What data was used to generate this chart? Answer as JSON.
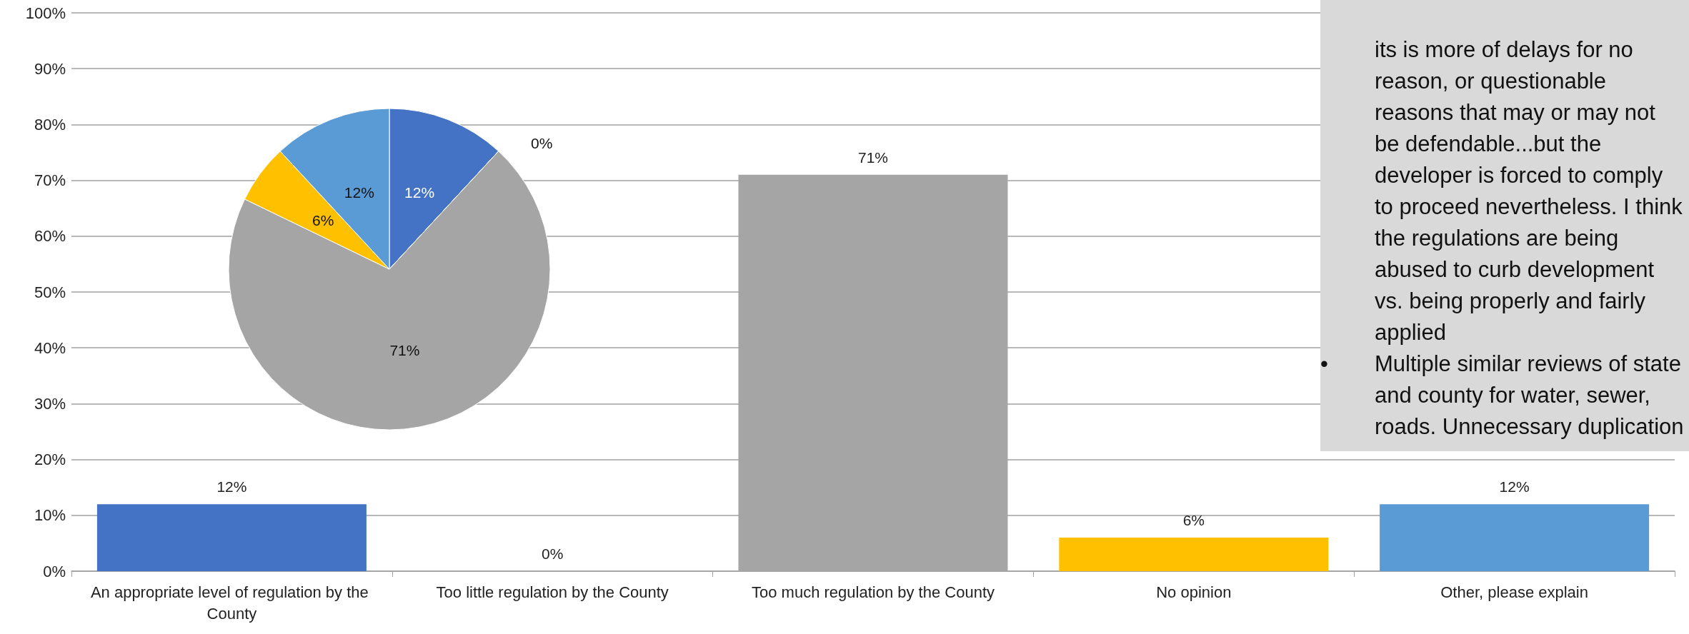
{
  "chart_data": [
    {
      "type": "bar",
      "categories": [
        "An appropriate level of regulation by the County",
        "Too little regulation by the County",
        "Too much regulation by the County",
        "No opinion",
        "Other, please explain"
      ],
      "values": [
        12,
        0,
        71,
        6,
        12
      ],
      "colors": [
        "#4472c4",
        "#a5a5a5",
        "#a5a5a5",
        "#ffc000",
        "#5b9bd5"
      ],
      "value_labels": [
        "12%",
        "0%",
        "71%",
        "6%",
        "12%"
      ],
      "ylim": [
        0,
        100
      ],
      "yticks": [
        {
          "value": 0,
          "label": "0%"
        },
        {
          "value": 10,
          "label": "10%"
        },
        {
          "value": 20,
          "label": "20%"
        },
        {
          "value": 30,
          "label": "30%"
        },
        {
          "value": 40,
          "label": "40%"
        },
        {
          "value": 50,
          "label": "50%"
        },
        {
          "value": 60,
          "label": "60%"
        },
        {
          "value": 70,
          "label": "70%"
        },
        {
          "value": 80,
          "label": "80%"
        },
        {
          "value": 90,
          "label": "90%"
        },
        {
          "value": 100,
          "label": "100%"
        }
      ],
      "grid": "y"
    },
    {
      "type": "pie",
      "categories": [
        null,
        null,
        null,
        null,
        null
      ],
      "values": [
        12,
        0,
        71,
        6,
        12
      ],
      "colors": [
        "#4472c4",
        "#ed7d31",
        "#a5a5a5",
        "#ffc000",
        "#5b9bd5"
      ],
      "value_labels": [
        "12%",
        "0%",
        "71%",
        "6%",
        "12%"
      ]
    },
    {
      "type": "other",
      "annotations": [
        "its is more of delays for no reason, or questionable reasons that may or may not be defendable...but the developer is forced to comply to proceed nevertheless. I think the regulations are being abused to curb development vs. being properly and fairly applied",
        "•\tMultiple similar reviews of state and county for water, sewer, roads. Unnecessary duplication"
      ]
    }
  ]
}
